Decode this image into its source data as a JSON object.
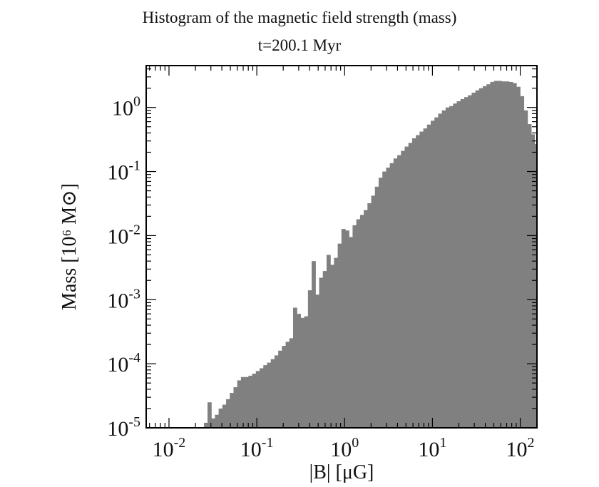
{
  "chart_data": {
    "type": "bar",
    "title": "Histogram of the magnetic field strength (mass)",
    "subtitle": "t=200.1 Myr",
    "xlabel": "|B| [μG]",
    "ylabel": "Mass [10⁶ M⊙]",
    "x_scale": "log",
    "y_scale": "log",
    "xlim": [
      0.0055,
      155
    ],
    "ylim": [
      1e-05,
      4.5
    ],
    "x_ticks": [
      {
        "base": "10",
        "exp": "-2",
        "value": 0.01
      },
      {
        "base": "10",
        "exp": "-1",
        "value": 0.1
      },
      {
        "base": "10",
        "exp": "0",
        "value": 1
      },
      {
        "base": "10",
        "exp": "1",
        "value": 10
      },
      {
        "base": "10",
        "exp": "2",
        "value": 100
      }
    ],
    "y_ticks": [
      {
        "base": "10",
        "exp": "-5",
        "value": 1e-05
      },
      {
        "base": "10",
        "exp": "-4",
        "value": 0.0001
      },
      {
        "base": "10",
        "exp": "-3",
        "value": 0.001
      },
      {
        "base": "10",
        "exp": "-2",
        "value": 0.01
      },
      {
        "base": "10",
        "exp": "-1",
        "value": 0.1
      },
      {
        "base": "10",
        "exp": "0",
        "value": 1
      }
    ],
    "bar_color": "#808080",
    "grid": false,
    "series": [
      {
        "x": [
          0.0262,
          0.0288,
          0.0318,
          0.035,
          0.0386,
          0.0426,
          0.0469,
          0.0517,
          0.057,
          0.0629,
          0.0693,
          0.0764,
          0.0843,
          0.0929,
          0.1025,
          0.1129,
          0.1245,
          0.1373,
          0.1514,
          0.1669,
          0.184,
          0.2028,
          0.2236,
          0.2465,
          0.2718,
          0.2996,
          0.3303,
          0.3642,
          0.4015,
          0.4426,
          0.488,
          0.538,
          0.5931,
          0.6539,
          0.7209,
          0.7947,
          0.8762,
          0.966,
          1.065,
          1.174,
          1.294,
          1.427,
          1.573,
          1.734,
          1.912,
          2.108,
          2.324,
          2.562,
          2.825,
          3.114,
          3.433,
          3.785,
          4.173,
          4.6,
          5.072,
          5.591,
          6.164,
          6.796,
          7.492,
          8.26,
          9.106,
          10.04,
          11.07,
          12.2,
          13.45,
          14.83,
          16.35,
          18.03,
          19.87,
          21.91,
          24.15,
          26.63,
          29.36,
          32.37,
          35.68,
          39.34,
          43.37,
          47.82,
          52.72,
          58.12,
          64.07,
          70.64,
          77.88,
          85.86,
          94.66,
          104.4,
          115.0,
          126.8,
          139.8,
          150.5
        ],
        "y": [
          1.2e-05,
          2.5e-05,
          1.4e-05,
          1.6e-05,
          2e-05,
          2.3e-05,
          2.8e-05,
          3.5e-05,
          4.3e-05,
          5.5e-05,
          6.2e-05,
          6.2e-05,
          6.5e-05,
          7e-05,
          7.7e-05,
          8.5e-05,
          9.5e-05,
          0.000104,
          0.000118,
          0.000135,
          0.00016,
          0.00019,
          0.00022,
          0.00025,
          0.00075,
          0.0006,
          0.00052,
          0.00055,
          0.0014,
          0.004,
          0.0012,
          0.0022,
          0.0028,
          0.005,
          0.0035,
          0.0045,
          0.0075,
          0.0127,
          0.012,
          0.0095,
          0.0145,
          0.018,
          0.021,
          0.025,
          0.032,
          0.042,
          0.058,
          0.08,
          0.1,
          0.115,
          0.135,
          0.16,
          0.18,
          0.21,
          0.245,
          0.28,
          0.33,
          0.37,
          0.42,
          0.47,
          0.54,
          0.62,
          0.7,
          0.8,
          0.9,
          1.0,
          1.05,
          1.15,
          1.25,
          1.35,
          1.45,
          1.55,
          1.7,
          1.85,
          2.0,
          2.15,
          2.3,
          2.5,
          2.6,
          2.6,
          2.55,
          2.55,
          2.5,
          2.4,
          2.1,
          1.5,
          0.9,
          0.55,
          0.38,
          0.27
        ]
      }
    ]
  }
}
